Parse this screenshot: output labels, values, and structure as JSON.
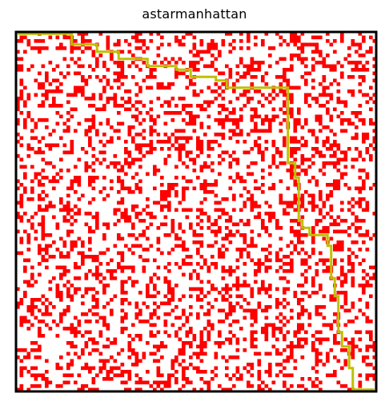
{
  "title": "astarmanhattan",
  "chart_data": {
    "type": "heatmap",
    "title": "astarmanhattan",
    "grid_size": [
      100,
      100
    ],
    "colors": {
      "obstacle": "#ff0000",
      "free": "#ffffff",
      "path": "#bfbf00",
      "frame": "#000000"
    },
    "obstacle_density": 0.3,
    "start": [
      0,
      0
    ],
    "goal": [
      99,
      99
    ],
    "path": [
      [
        0,
        0
      ],
      [
        15,
        0
      ],
      [
        15,
        3
      ],
      [
        22,
        3
      ],
      [
        22,
        5
      ],
      [
        28,
        5
      ],
      [
        28,
        7
      ],
      [
        36,
        7
      ],
      [
        36,
        9
      ],
      [
        44,
        9
      ],
      [
        44,
        10
      ],
      [
        48,
        10
      ],
      [
        48,
        12
      ],
      [
        55,
        12
      ],
      [
        55,
        13
      ],
      [
        58,
        13
      ],
      [
        58,
        15
      ],
      [
        75,
        15
      ],
      [
        75,
        36
      ],
      [
        77,
        36
      ],
      [
        77,
        40
      ],
      [
        78,
        40
      ],
      [
        78,
        52
      ],
      [
        79,
        52
      ],
      [
        79,
        54
      ],
      [
        81,
        54
      ],
      [
        81,
        56
      ],
      [
        86,
        56
      ],
      [
        86,
        59
      ],
      [
        87,
        59
      ],
      [
        87,
        68
      ],
      [
        88,
        68
      ],
      [
        88,
        73
      ],
      [
        89,
        73
      ],
      [
        89,
        83
      ],
      [
        90,
        83
      ],
      [
        90,
        87
      ],
      [
        92,
        87
      ],
      [
        92,
        93
      ],
      [
        93,
        93
      ],
      [
        93,
        99
      ],
      [
        99,
        99
      ]
    ],
    "grid": false,
    "xlabel": "",
    "ylabel": ""
  }
}
